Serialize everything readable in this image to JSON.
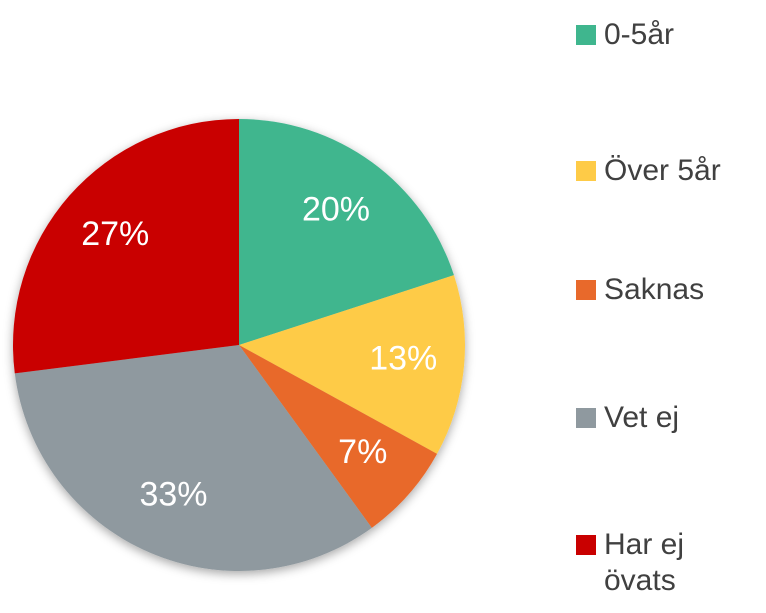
{
  "chart_data": {
    "type": "pie",
    "categories": [
      "0-5år",
      "Över 5år",
      "Saknas",
      "Vet ej",
      "Har ej övats"
    ],
    "values": [
      20,
      13,
      7,
      33,
      27
    ],
    "value_labels": [
      "20%",
      "13%",
      "7%",
      "33%",
      "27%"
    ],
    "colors": [
      "#3fb68e",
      "#fecb47",
      "#e8692b",
      "#8f999f",
      "#c90000"
    ]
  }
}
